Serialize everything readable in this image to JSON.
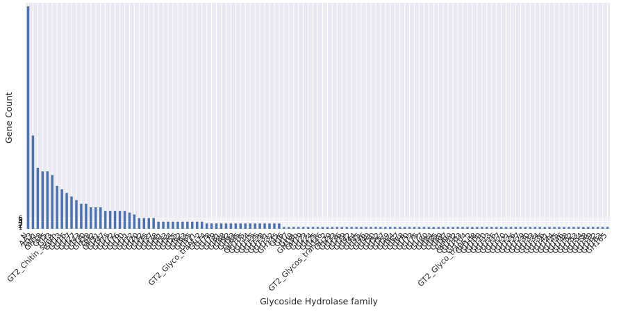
{
  "chart_data": {
    "type": "bar",
    "xlabel": "Glycoside Hydrolase family",
    "ylabel": "Gene Count",
    "ytick_labels": [
      "1",
      "2",
      "3",
      "4",
      "5",
      "6"
    ],
    "ytick_values": [
      1,
      2,
      3,
      4,
      5,
      6
    ],
    "ylim": [
      0,
      126
    ],
    "grid": true,
    "bar_color": "#4c72b0",
    "background_color": "#eaeaf2",
    "grid_color": "#ffffff",
    "categories": [
      "N",
      "AA3",
      "GH1",
      "GH18",
      "GH5",
      "GH3",
      "GT2_Chitin_synth",
      "GH13",
      "GH16",
      "GH17",
      "GH27",
      "GH43",
      "GH30",
      "GH28",
      "GH2",
      "GH31",
      "GH47",
      "GH15",
      "GH72",
      "GH76",
      "GH10",
      "GH11",
      "GH12",
      "GH20",
      "GH32",
      "GH35",
      "GH37",
      "GH38",
      "GH51",
      "GH53",
      "GH54",
      "GH55",
      "GH62",
      "GH63",
      "GH65",
      "GH71",
      "GT2_Glyco_tranf_2",
      "GH74",
      "GH78",
      "GH79",
      "GH81",
      "GH88",
      "GH92",
      "GH93",
      "GH95",
      "GH105",
      "GH114",
      "GH115",
      "GH125",
      "GH128",
      "GH131",
      "GH132",
      "GH135",
      "GH6",
      "GH7",
      "GH9",
      "GH18b",
      "GH19",
      "GH23",
      "GH24",
      "GH25",
      "GH26",
      "GT2_Glycos_transf_2",
      "GH29",
      "GH33",
      "GH36",
      "GH39",
      "GH42",
      "GH44",
      "GH45",
      "GH46",
      "GH49",
      "GH50",
      "GH52",
      "GH57",
      "GH59",
      "GH64",
      "GH67",
      "GH68",
      "GH70",
      "GH73",
      "GH75",
      "GH77",
      "GH80",
      "GH84",
      "GH85",
      "GH89",
      "GH97",
      "GH99",
      "GH102",
      "GH103",
      "GH104",
      "GT2_Glyco_trans_2",
      "GH108",
      "GH109",
      "GH110",
      "GH113",
      "GH116",
      "GH117",
      "GH120",
      "GH121",
      "GH126",
      "GH127",
      "GH129",
      "GH130",
      "GH133",
      "GH134",
      "GH136",
      "GH141",
      "GH144",
      "GH145",
      "GH146",
      "GH148",
      "GH152",
      "GH153",
      "GH154",
      "GH158",
      "GH159",
      "GH162",
      "GH163",
      "GH165"
    ],
    "values": [
      124,
      52,
      34,
      32,
      32,
      30,
      24,
      22,
      20,
      18,
      16,
      14,
      14,
      12,
      12,
      12,
      10,
      10,
      10,
      10,
      10,
      9,
      8,
      6,
      6,
      6,
      6,
      4,
      4,
      4,
      4,
      4,
      4,
      4,
      4,
      4,
      4,
      3,
      3,
      3,
      3,
      3,
      3,
      3,
      3,
      3,
      3,
      3,
      3,
      3,
      3,
      3,
      3,
      1,
      1,
      1,
      1,
      1,
      1,
      1,
      1,
      1,
      1,
      1,
      1,
      1,
      1,
      1,
      1,
      1,
      1,
      1,
      1,
      1,
      1,
      1,
      1,
      1,
      1,
      1,
      1,
      1,
      1,
      1,
      1,
      1,
      1,
      1,
      1,
      1,
      1,
      1,
      1,
      1,
      1,
      1,
      1,
      1,
      1,
      1,
      1,
      1,
      1,
      1,
      1,
      1,
      1,
      1,
      1,
      1,
      1,
      1,
      1,
      1,
      1,
      1,
      1,
      1,
      1,
      1,
      1
    ]
  }
}
